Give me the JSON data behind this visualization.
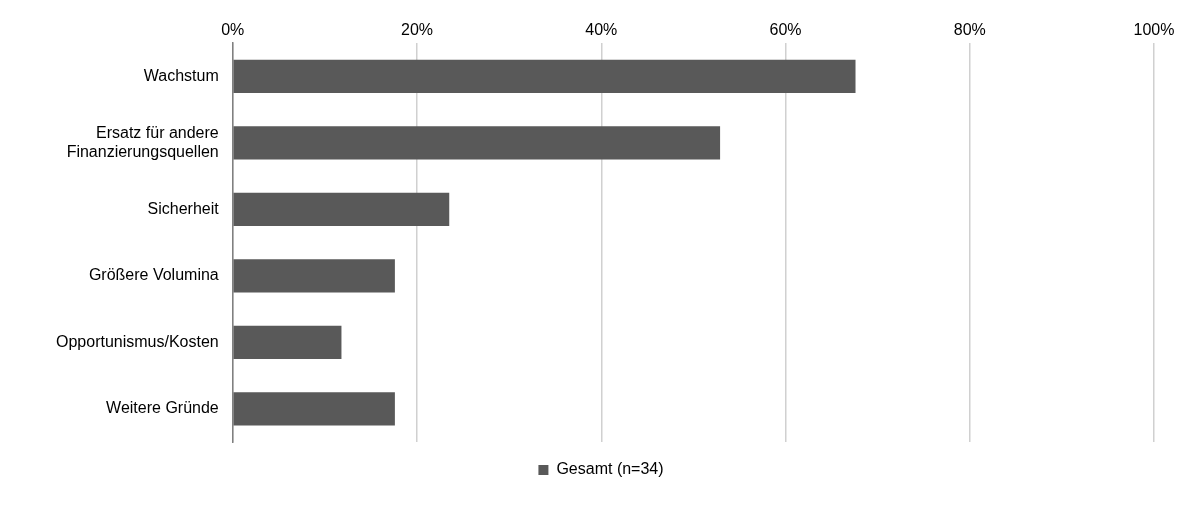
{
  "chart_data": {
    "type": "bar",
    "orientation": "horizontal",
    "categories": [
      "Wachstum",
      "Ersatz für andere Finanzierungsquellen",
      "Sicherheit",
      "Größere Volumina",
      "Opportunismus/Kosten",
      "Weitere Gründe"
    ],
    "series": [
      {
        "name": "Gesamt (n=34)",
        "color": "#595959",
        "values": [
          67.6,
          52.9,
          23.5,
          17.6,
          11.8,
          17.6
        ]
      }
    ],
    "xlim": [
      0,
      100
    ],
    "xticks": [
      {
        "value": 0,
        "label": "0%"
      },
      {
        "value": 20,
        "label": "20%"
      },
      {
        "value": 40,
        "label": "40%"
      },
      {
        "value": 60,
        "label": "60%"
      },
      {
        "value": 80,
        "label": "80%"
      },
      {
        "value": 100,
        "label": "100%"
      }
    ],
    "grid": "x",
    "legend": "bottom"
  }
}
